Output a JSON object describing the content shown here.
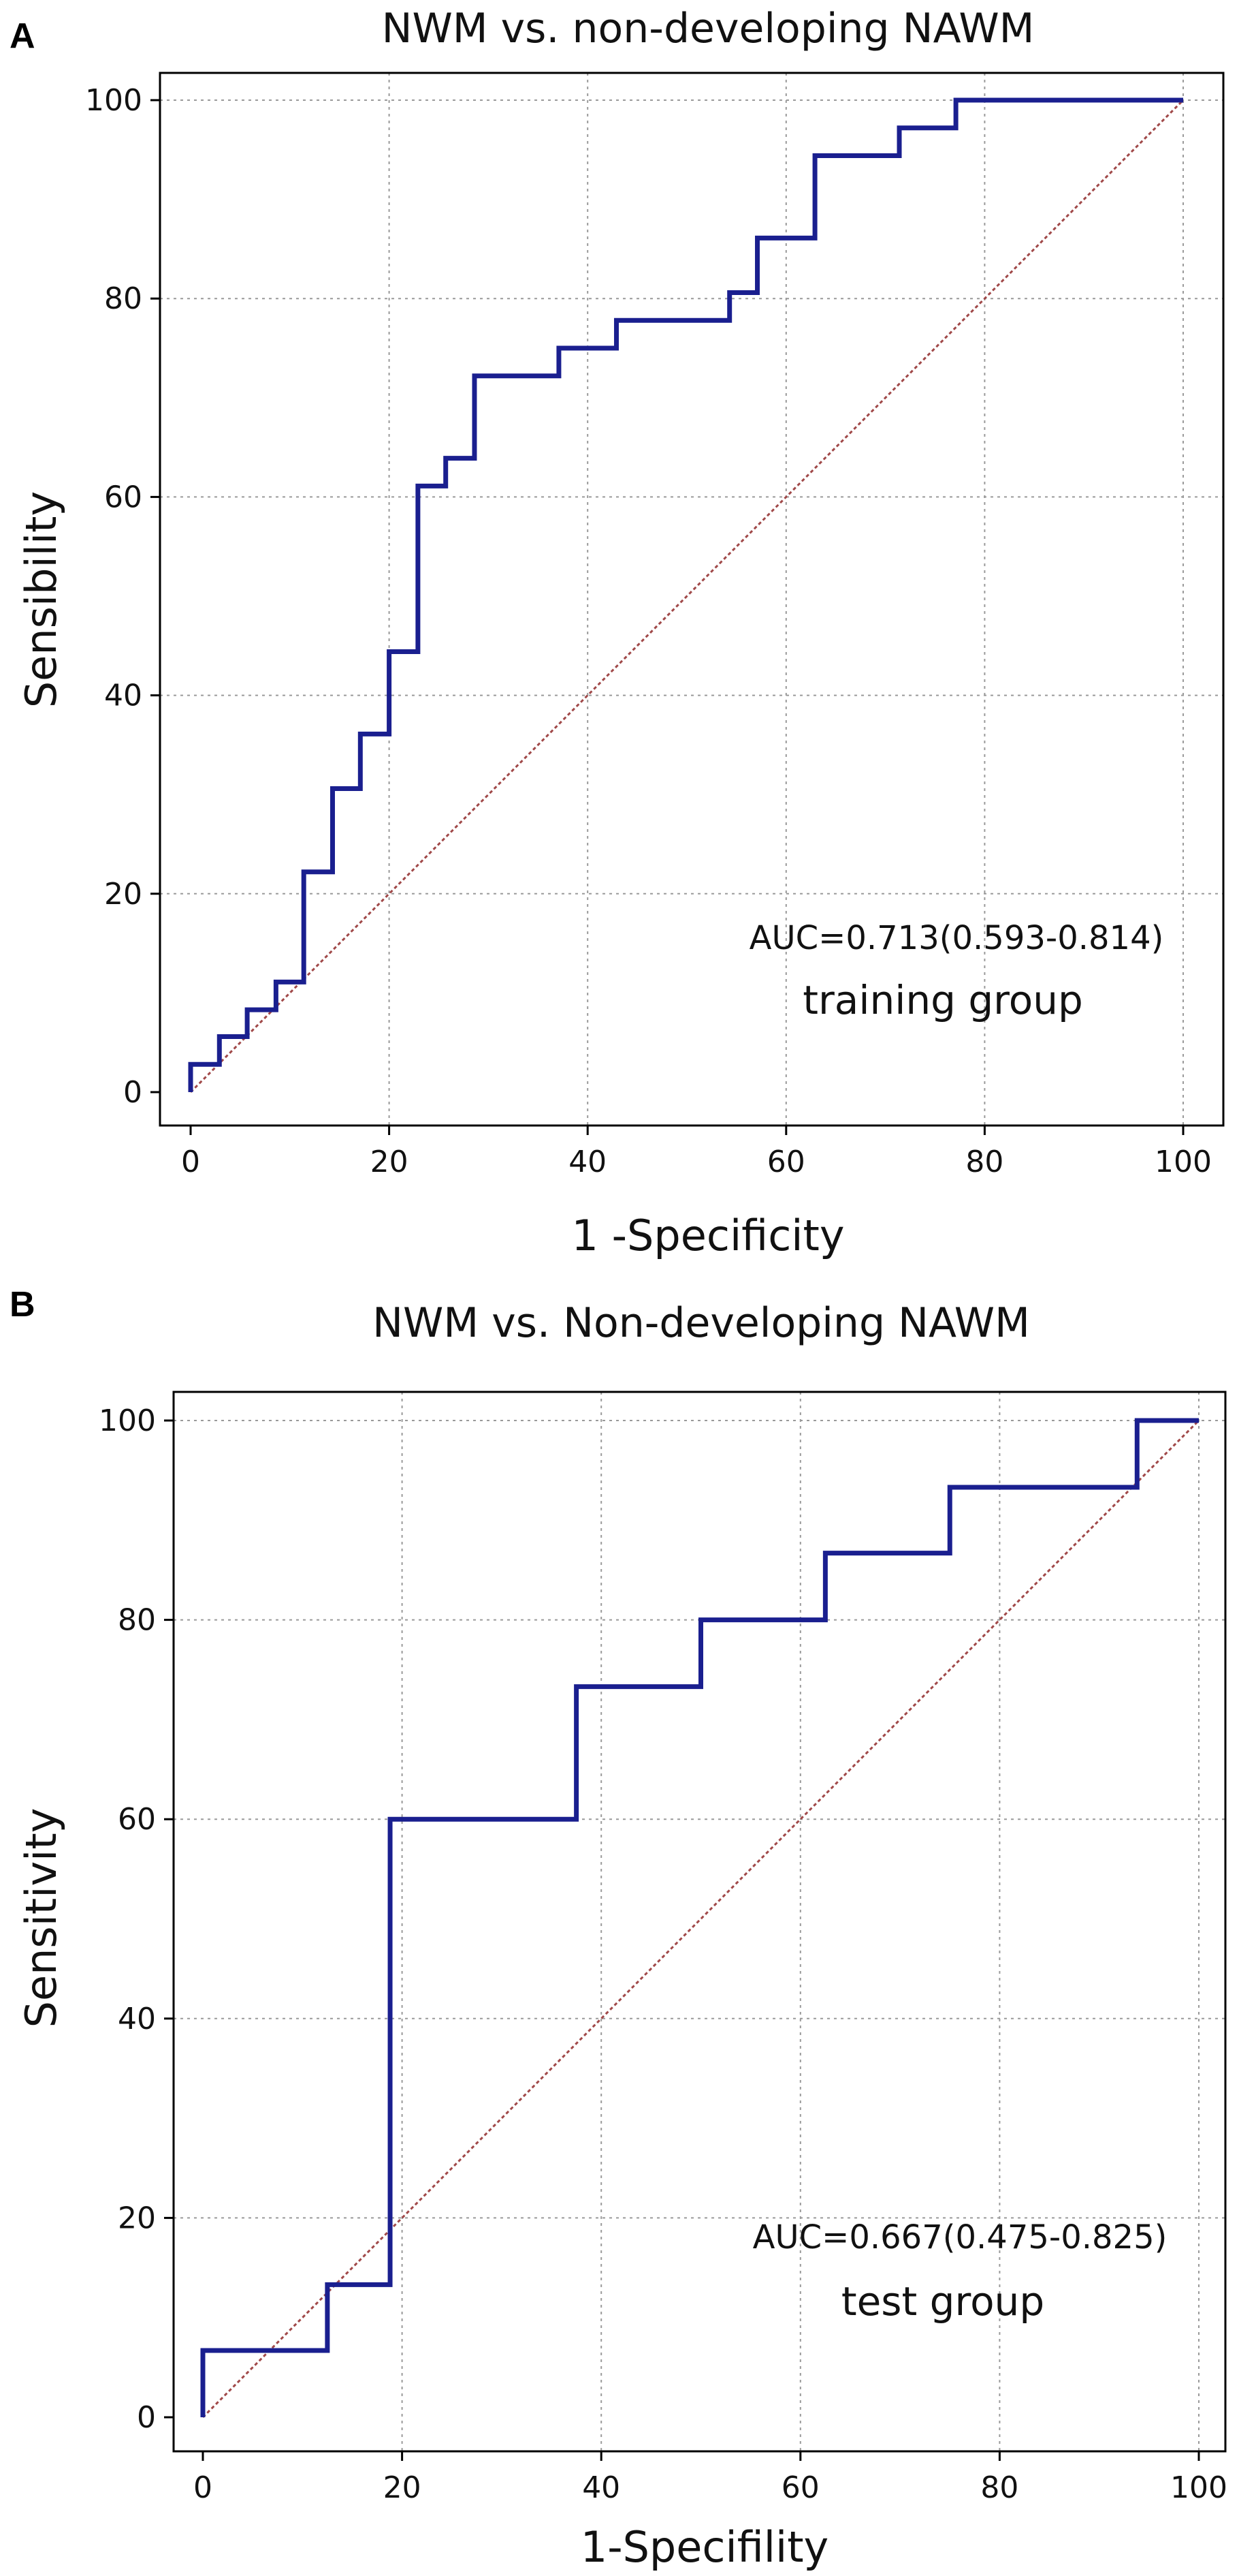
{
  "colors": {
    "roc": "#1a1f8f",
    "diagonal": "#a04848",
    "grid": "#9a9a9a"
  },
  "chart_data": [
    {
      "type": "line",
      "panel": "A",
      "title": "NWM vs. non-developing NAWM",
      "xlabel": "1 -Specificity",
      "ylabel": "Sensibility",
      "xlim": [
        0,
        100
      ],
      "ylim": [
        0,
        100
      ],
      "xticks": [
        0,
        20,
        40,
        60,
        80,
        100
      ],
      "yticks": [
        0,
        20,
        40,
        60,
        80,
        100
      ],
      "grid": true,
      "annotation_auc": "AUC=0.713(0.593-0.814)",
      "annotation_group": "training group",
      "series": [
        {
          "name": "ROC",
          "style": "step",
          "points": [
            [
              0,
              0
            ],
            [
              0,
              2.8
            ],
            [
              2.9,
              2.8
            ],
            [
              2.9,
              5.6
            ],
            [
              5.7,
              5.6
            ],
            [
              5.7,
              8.3
            ],
            [
              8.6,
              8.3
            ],
            [
              8.6,
              11.1
            ],
            [
              11.4,
              11.1
            ],
            [
              11.4,
              22.2
            ],
            [
              14.3,
              22.2
            ],
            [
              14.3,
              30.6
            ],
            [
              17.1,
              30.6
            ],
            [
              17.1,
              36.1
            ],
            [
              20,
              36.1
            ],
            [
              20,
              44.4
            ],
            [
              22.9,
              44.4
            ],
            [
              22.9,
              61.1
            ],
            [
              25.7,
              61.1
            ],
            [
              25.7,
              63.9
            ],
            [
              28.6,
              63.9
            ],
            [
              28.6,
              72.2
            ],
            [
              37.1,
              72.2
            ],
            [
              37.1,
              75
            ],
            [
              42.9,
              75
            ],
            [
              42.9,
              77.8
            ],
            [
              54.3,
              77.8
            ],
            [
              54.3,
              80.6
            ],
            [
              57.1,
              80.6
            ],
            [
              57.1,
              86.1
            ],
            [
              62.9,
              86.1
            ],
            [
              62.9,
              94.4
            ],
            [
              71.4,
              94.4
            ],
            [
              71.4,
              97.2
            ],
            [
              77.1,
              97.2
            ],
            [
              77.1,
              100
            ],
            [
              100,
              100
            ]
          ]
        },
        {
          "name": "Reference",
          "style": "dashed",
          "points": [
            [
              0,
              0
            ],
            [
              100,
              100
            ]
          ]
        }
      ]
    },
    {
      "type": "line",
      "panel": "B",
      "title": "NWM vs. Non-developing NAWM",
      "xlabel": "1-Specifility",
      "ylabel": "Sensitivity",
      "xlim": [
        0,
        100
      ],
      "ylim": [
        0,
        100
      ],
      "xticks": [
        0,
        20,
        40,
        60,
        80,
        100
      ],
      "yticks": [
        0,
        20,
        40,
        60,
        80,
        100
      ],
      "grid": true,
      "annotation_auc": "AUC=0.667(0.475-0.825)",
      "annotation_group": "test group",
      "series": [
        {
          "name": "ROC",
          "style": "step",
          "points": [
            [
              0,
              0
            ],
            [
              0,
              6.7
            ],
            [
              12.5,
              6.7
            ],
            [
              12.5,
              13.3
            ],
            [
              18.8,
              13.3
            ],
            [
              18.8,
              60
            ],
            [
              37.5,
              60
            ],
            [
              37.5,
              73.3
            ],
            [
              50,
              73.3
            ],
            [
              50,
              80
            ],
            [
              62.5,
              80
            ],
            [
              62.5,
              86.7
            ],
            [
              75,
              86.7
            ],
            [
              75,
              93.3
            ],
            [
              93.8,
              93.3
            ],
            [
              93.8,
              100
            ],
            [
              100,
              100
            ]
          ]
        },
        {
          "name": "Reference",
          "style": "dashed",
          "points": [
            [
              0,
              0
            ],
            [
              100,
              100
            ]
          ]
        }
      ]
    }
  ]
}
